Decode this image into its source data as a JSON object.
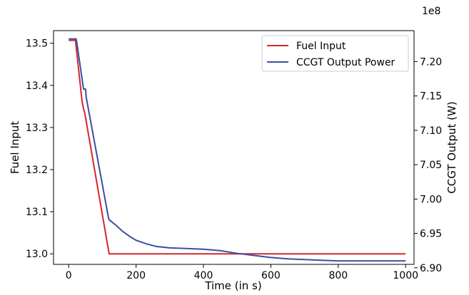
{
  "chart_data": {
    "type": "line",
    "title": "",
    "xlabel": "Time (in s)",
    "ylabel_left": "Fuel Input",
    "ylabel_right": "CCGT Output (W)",
    "right_axis_multiplier": "1e8",
    "xlim": [
      -45,
      1025
    ],
    "ylim_left": [
      12.975,
      13.53
    ],
    "ylim_right": [
      690500000.0,
      724500000.0
    ],
    "x_ticks": [
      0,
      200,
      400,
      600,
      800,
      1000
    ],
    "y_ticks_left": [
      13.0,
      13.1,
      13.2,
      13.3,
      13.4,
      13.5
    ],
    "y_ticks_left_labels": [
      "13.0",
      "13.1",
      "13.2",
      "13.3",
      "13.4",
      "13.5"
    ],
    "y_ticks_right": [
      690000000.0,
      695000000.0,
      700000000.0,
      705000000.0,
      710000000.0,
      715000000.0,
      720000000.0
    ],
    "y_ticks_right_labels": [
      "6.90",
      "6.95",
      "7.00",
      "7.05",
      "7.10",
      "7.15",
      "7.20"
    ],
    "grid": false,
    "legend_position": "top-right",
    "series": [
      {
        "name": "Fuel Input",
        "axis": "left",
        "color": "#d62728",
        "points": [
          [
            0,
            13.507
          ],
          [
            20,
            13.507
          ],
          [
            40,
            13.36
          ],
          [
            44,
            13.345
          ],
          [
            48,
            13.333
          ],
          [
            120,
            13.0
          ],
          [
            1000,
            13.0
          ]
        ]
      },
      {
        "name": "CCGT Output Power",
        "axis": "right",
        "color": "#3b4fa0",
        "points": [
          [
            0,
            723300000.0
          ],
          [
            22,
            723300000.0
          ],
          [
            24,
            722800000.0
          ],
          [
            44,
            716000000.0
          ],
          [
            50,
            716000000.0
          ],
          [
            52,
            714800000.0
          ],
          [
            118,
            697300000.0
          ],
          [
            120,
            697000000.0
          ],
          [
            140,
            696200000.0
          ],
          [
            160,
            695300000.0
          ],
          [
            180,
            694600000.0
          ],
          [
            200,
            694000000.0
          ],
          [
            230,
            693500000.0
          ],
          [
            260,
            693100000.0
          ],
          [
            300,
            692900000.0
          ],
          [
            350,
            692800000.0
          ],
          [
            400,
            692700000.0
          ],
          [
            450,
            692500000.0
          ],
          [
            500,
            692100000.0
          ],
          [
            550,
            691800000.0
          ],
          [
            600,
            691500000.0
          ],
          [
            650,
            691300000.0
          ],
          [
            700,
            691200000.0
          ],
          [
            750,
            691100000.0
          ],
          [
            800,
            691000000.0
          ],
          [
            900,
            691000000.0
          ],
          [
            1000,
            691000000.0
          ]
        ]
      }
    ]
  }
}
